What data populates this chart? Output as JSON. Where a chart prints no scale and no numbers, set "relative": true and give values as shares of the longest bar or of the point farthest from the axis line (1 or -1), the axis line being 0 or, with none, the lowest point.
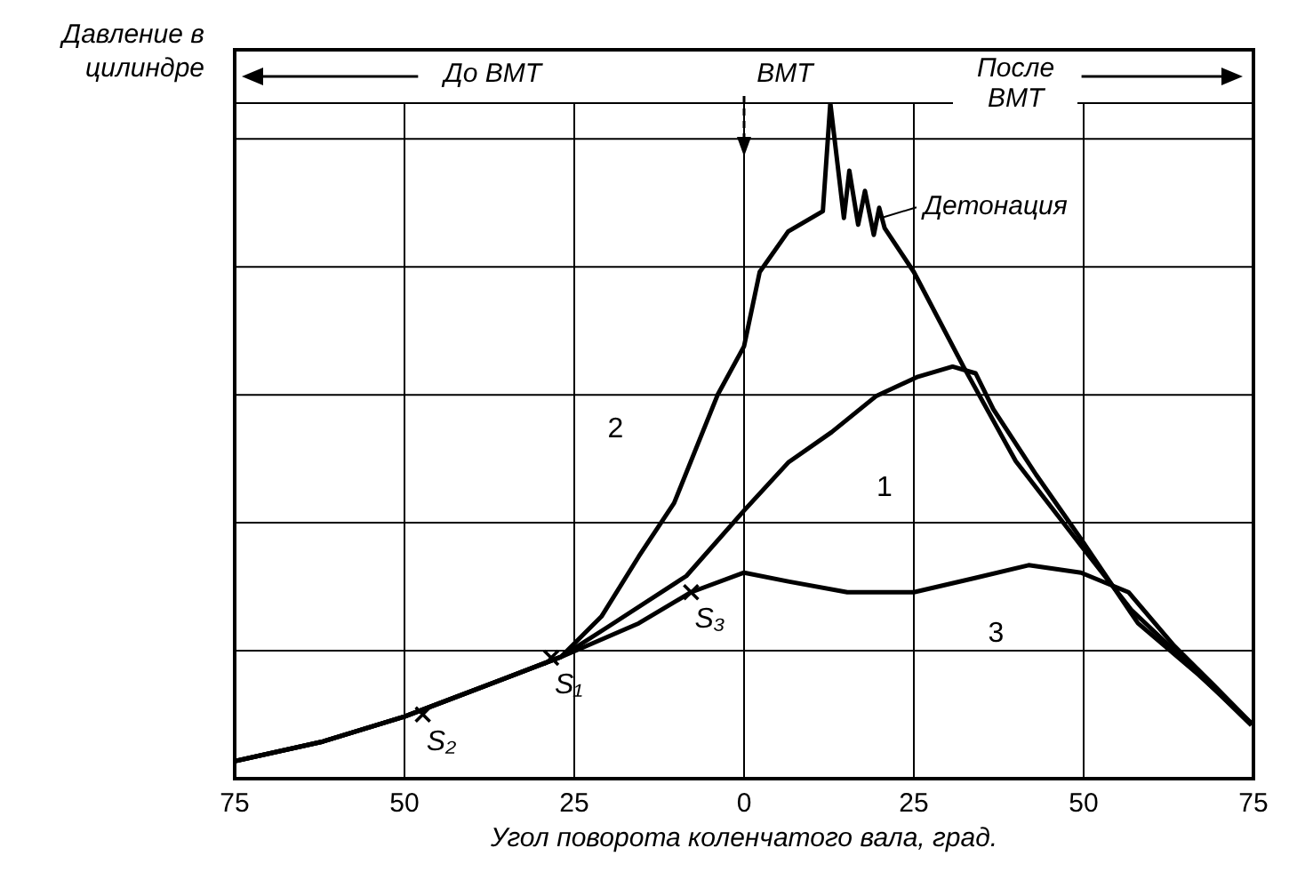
{
  "chart_data": {
    "type": "line",
    "relative": true,
    "ylabel": "Давление в цилиндре",
    "xlabel": "Угол поворота коленчатого вала, град.",
    "xlim": [
      -75,
      75
    ],
    "xticks": [
      {
        "value": -75,
        "label": "75"
      },
      {
        "value": -50,
        "label": "50"
      },
      {
        "value": -25,
        "label": "25"
      },
      0,
      25,
      50,
      75
    ],
    "grid": true,
    "legend": false,
    "marker": "none",
    "line_style": "solid",
    "series": [
      {
        "name": "1",
        "color": "#000000",
        "x": [
          -75,
          -62,
          -50,
          -40,
          -27,
          -20,
          -8.5,
          0,
          6.5,
          12.9,
          19.4,
          25.6,
          30.7,
          34.1,
          36.7,
          43,
          49.6,
          58,
          67,
          74.7
        ],
        "values": [
          0.026,
          0.055,
          0.092,
          0.13,
          0.18,
          0.225,
          0.3,
          0.397,
          0.468,
          0.513,
          0.566,
          0.595,
          0.61,
          0.6,
          0.547,
          0.45,
          0.355,
          0.23,
          0.153,
          0.082
        ]
      },
      {
        "name": "2",
        "color": "#000000",
        "x": [
          -75,
          -62,
          -50,
          -40,
          -27,
          -21,
          -15.5,
          -10.3,
          -3.9,
          0,
          2.3,
          6.5,
          11.6,
          12.7,
          14.7,
          15.5,
          16.8,
          17.8,
          19.1,
          19.9,
          20.7,
          25,
          32.3,
          40,
          49.6,
          57,
          65,
          74.7
        ],
        "values": [
          0.026,
          0.055,
          0.092,
          0.13,
          0.18,
          0.24,
          0.329,
          0.408,
          0.568,
          0.64,
          0.75,
          0.81,
          0.84,
          1,
          0.83,
          0.9,
          0.82,
          0.87,
          0.805,
          0.845,
          0.815,
          0.75,
          0.61,
          0.47,
          0.345,
          0.25,
          0.174,
          0.079
        ]
      },
      {
        "name": "3",
        "color": "#000000",
        "x": [
          -75,
          -62,
          -50,
          -40,
          -27,
          -15.5,
          -7.8,
          0,
          6.5,
          15.2,
          25,
          34,
          41.9,
          49.6,
          56.6,
          63.3,
          69,
          74.7
        ],
        "values": [
          0.026,
          0.055,
          0.092,
          0.13,
          0.18,
          0.23,
          0.276,
          0.305,
          0.292,
          0.276,
          0.276,
          0.297,
          0.316,
          0.305,
          0.276,
          0.197,
          0.14,
          0.082
        ]
      }
    ],
    "annotations": [
      {
        "text": "S₂",
        "x": -47.3,
        "y": 0.095
      },
      {
        "text": "S₁",
        "x": -28.4,
        "y": 0.179
      },
      {
        "text": "S₃",
        "x": -7.8,
        "y": 0.276
      },
      {
        "text": "Детонация",
        "x": 19.1,
        "y": 0.83
      },
      "До ВМТ",
      "ВМТ",
      "После ВМТ"
    ]
  }
}
